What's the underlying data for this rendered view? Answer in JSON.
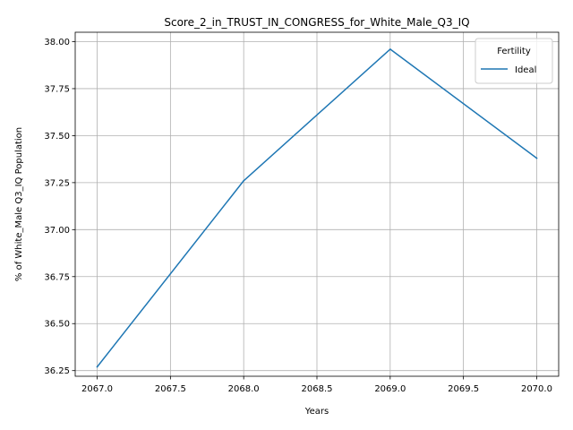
{
  "chart_data": {
    "type": "line",
    "title": "Score_2_in_TRUST_IN_CONGRESS_for_White_Male_Q3_IQ",
    "xlabel": "Years",
    "ylabel": "% of White_Male Q3_IQ Population",
    "x": [
      2067,
      2068,
      2069,
      2070
    ],
    "series": [
      {
        "name": "Ideal",
        "color": "#1f77b4",
        "values": [
          36.27,
          37.26,
          37.96,
          37.38
        ]
      }
    ],
    "xlim": [
      2066.85,
      2070.15
    ],
    "ylim": [
      36.22,
      38.05
    ],
    "xticks": [
      "2067.0",
      "2067.5",
      "2068.0",
      "2068.5",
      "2069.0",
      "2069.5",
      "2070.0"
    ],
    "yticks": [
      "36.25",
      "36.50",
      "36.75",
      "37.00",
      "37.25",
      "37.50",
      "37.75",
      "38.00"
    ],
    "grid": true,
    "legend": {
      "title": "Fertility",
      "position": "top-right"
    }
  }
}
